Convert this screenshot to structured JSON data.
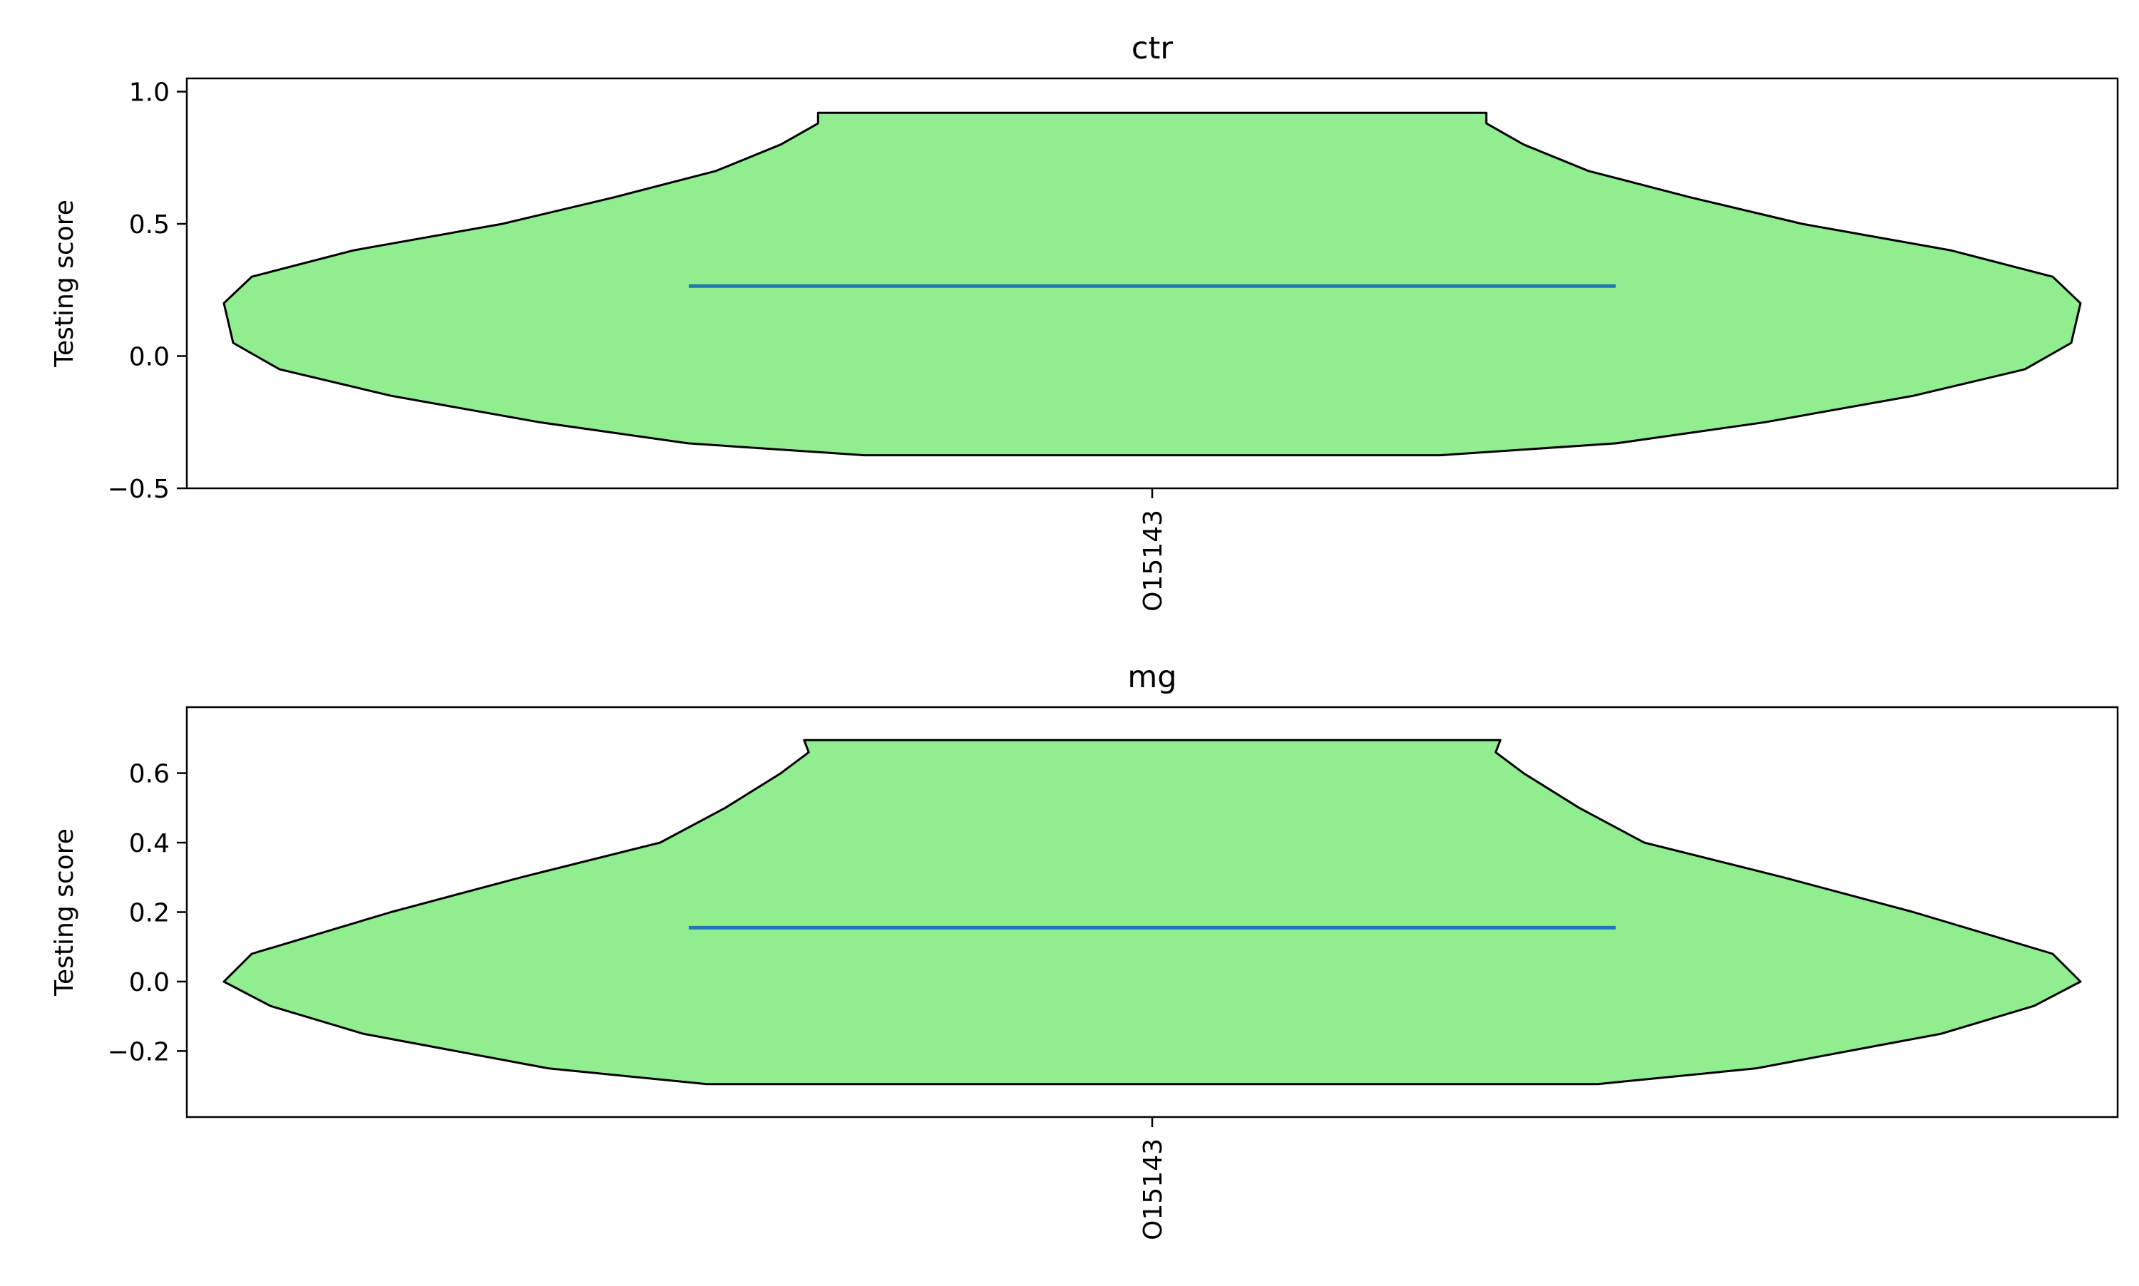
{
  "colors": {
    "violin_fill": "#90ee90",
    "violin_edge": "#000000",
    "median_line": "#1f77b4",
    "axes": "#000000",
    "background": "#ffffff"
  },
  "chart_data": [
    {
      "type": "violin",
      "title": "ctr",
      "ylabel": "Testing score",
      "xlabel": "",
      "categories": [
        "O15143"
      ],
      "ylim": [
        -0.5,
        1.05
      ],
      "yticks": [
        -0.5,
        0.0,
        0.5,
        1.0
      ],
      "ytick_labels": [
        "−0.5",
        "0.0",
        "0.5",
        "1.0"
      ],
      "grid": false,
      "min": -0.375,
      "max": 0.92,
      "median": 0.265,
      "density_profile": [
        {
          "y": -0.375,
          "w": 0.31
        },
        {
          "y": -0.33,
          "w": 0.5
        },
        {
          "y": -0.25,
          "w": 0.66
        },
        {
          "y": -0.15,
          "w": 0.82
        },
        {
          "y": -0.05,
          "w": 0.94
        },
        {
          "y": 0.05,
          "w": 0.99
        },
        {
          "y": 0.2,
          "w": 1.0
        },
        {
          "y": 0.3,
          "w": 0.97
        },
        {
          "y": 0.4,
          "w": 0.86
        },
        {
          "y": 0.5,
          "w": 0.7
        },
        {
          "y": 0.6,
          "w": 0.58
        },
        {
          "y": 0.7,
          "w": 0.47
        },
        {
          "y": 0.8,
          "w": 0.4
        },
        {
          "y": 0.88,
          "w": 0.36
        },
        {
          "y": 0.92,
          "w": 0.36
        }
      ]
    },
    {
      "type": "violin",
      "title": "mg",
      "ylabel": "Testing score",
      "xlabel": "",
      "categories": [
        "O15143"
      ],
      "ylim": [
        -0.39,
        0.79
      ],
      "yticks": [
        -0.2,
        0.0,
        0.2,
        0.4,
        0.6
      ],
      "ytick_labels": [
        "−0.2",
        "0.0",
        "0.2",
        "0.4",
        "0.6"
      ],
      "grid": false,
      "min": -0.295,
      "max": 0.695,
      "median": 0.155,
      "density_profile": [
        {
          "y": -0.295,
          "w": 0.48
        },
        {
          "y": -0.25,
          "w": 0.65
        },
        {
          "y": -0.15,
          "w": 0.85
        },
        {
          "y": -0.07,
          "w": 0.95
        },
        {
          "y": 0.0,
          "w": 1.0
        },
        {
          "y": 0.08,
          "w": 0.97
        },
        {
          "y": 0.2,
          "w": 0.82
        },
        {
          "y": 0.3,
          "w": 0.68
        },
        {
          "y": 0.4,
          "w": 0.53
        },
        {
          "y": 0.5,
          "w": 0.46
        },
        {
          "y": 0.6,
          "w": 0.4
        },
        {
          "y": 0.66,
          "w": 0.37
        },
        {
          "y": 0.695,
          "w": 0.375
        }
      ]
    }
  ]
}
